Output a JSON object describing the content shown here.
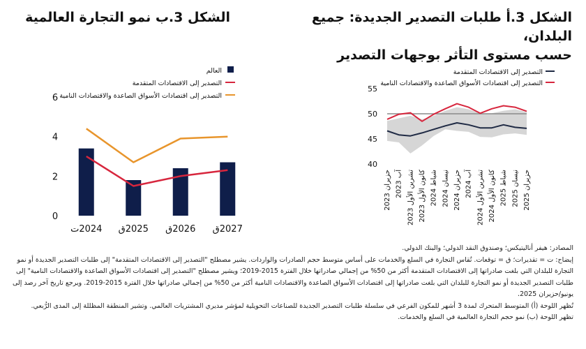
{
  "panel_a": {
    "title_line1": "الشكل 3.أ طلبات التصدير الجديدة: جميع البلدان،",
    "title_line2": "حسب مستوى التأثر بوجهات التصدير"
  },
  "panel_b": {
    "title": "الشكل 3.ب نمو التجارة العالمية"
  },
  "notes": [
    "المصادر: هيفر أناليتيكس؛ وصندوق النقد الدولي؛ والبنك الدولي.",
    "إيضاح: ت = تقديرات؛ ق = توقعات. تُقاس التجارة في السلع والخدمات على أساس متوسط حجم الصادرات والواردات. يشير مصطلح \"التصدير إلى الاقتصادات المتقدمة\" إلى طلبات التصدير الجديدة أو نمو التجارة للبلدان التي بلغت صادراتها إلى الاقتصادات المتقدمة أكثر من 50% من إجمالي صادراتها خلال الفترة 2015-2019؛ ويشير مصطلح \"التصدير إلى اقتصادات الأسواق الصاعدة والاقتصادات النامية\" إلى طلبات التصدير الجديدة أو نمو التجارة للبلدان التي بلغت صادراتها إلى اقتصادات الأسواق الصاعدة والاقتصادات النامية أكثر من 50% من إجمالي صادراتها خلال الفترة 2015-2019. ويرجع تاريخ آخر رصد إلى يونيو/حزيران 2025.",
    "تُظهر اللوحة (أ) المتوسط المتحرك لمدة 3 أشهر للمكون الفرعي في سلسلة طلبات التصدير الجديدة للصناعات التحويلية لمؤشر مديري المشتريات العالمي. وتشير المنطقة المظللة إلى المدى الرُّبعي.",
    "تظهر اللوحة (ب) نمو حجم التجارة العالمية في السلع والخدمات."
  ],
  "chart_data": [
    {
      "type": "line",
      "x": [
        "حزيران 2023",
        "آب 2023",
        "تشرين الأول 2023",
        "كانون الأول 2023",
        "شباط 2024",
        "نيسان 2024",
        "حزيران 2024",
        "آب 2024",
        "تشرين الأول 2024",
        "كانون الأول 2024",
        "شباط 2025",
        "نيسان 2025",
        "حزيران 2025"
      ],
      "x_tick_labels": [
        "حزيران 2023",
        "آب 2023",
        "تشرين الأول 2023",
        "كانون الأول 2023",
        "شباط 2024",
        "نيسان 2024",
        "حزيران 2024",
        "آب 2024",
        "تشرين الأول 2024",
        "كانون الأول 2024",
        "شباط 2025",
        "نيسان 2025",
        "حزيران 2025"
      ],
      "ylim": [
        40,
        55
      ],
      "y_ticks": [
        40,
        45,
        50,
        55
      ],
      "reference_line": 50,
      "series": [
        {
          "name": "التصدير إلى الاقتصادات المتقدمة",
          "color": "#1f2a44",
          "values": [
            46.6,
            45.8,
            45.6,
            46.2,
            46.9,
            47.6,
            48.2,
            47.8,
            47.2,
            47.2,
            47.8,
            47.3,
            47.1
          ]
        },
        {
          "name": "التصدير إلى اقتصادات الأسواق الصاعدة والاقتصادات النامية",
          "color": "#d7263d",
          "values": [
            48.9,
            49.9,
            50.2,
            48.5,
            49.9,
            51.0,
            52.0,
            51.3,
            50.1,
            51.0,
            51.6,
            51.3,
            50.5
          ]
        }
      ],
      "interquartile_range": {
        "color": "#d6d6d6",
        "lower": [
          44.6,
          44.3,
          42.1,
          43.7,
          45.6,
          46.9,
          46.6,
          46.4,
          45.4,
          45.3,
          45.9,
          46.1,
          45.8
        ],
        "upper": [
          48.6,
          49.1,
          49.6,
          48.9,
          49.6,
          50.6,
          51.3,
          50.9,
          50.1,
          50.1,
          50.6,
          50.9,
          50.3
        ]
      },
      "legend_position": "top"
    },
    {
      "type": "bar",
      "categories": [
        "2024ت",
        "2025ق",
        "2026ق",
        "2027ق"
      ],
      "ylim": [
        0,
        6
      ],
      "y_ticks": [
        0,
        2,
        4,
        6
      ],
      "series": [
        {
          "name": "العالم",
          "type": "bar",
          "color": "#0f1e4a",
          "values": [
            3.4,
            1.8,
            2.4,
            2.7
          ]
        },
        {
          "name": "التصدير إلى الاقتصادات المتقدمة",
          "type": "line",
          "color": "#d7263d",
          "values": [
            3.0,
            1.5,
            2.0,
            2.3
          ]
        },
        {
          "name": "التصدير إلى اقتصادات الأسواق الصاعدة والاقتصادات النامية",
          "type": "line",
          "color": "#e8952c",
          "values": [
            4.4,
            2.7,
            3.9,
            4.0
          ]
        }
      ],
      "legend_position": "top"
    }
  ]
}
